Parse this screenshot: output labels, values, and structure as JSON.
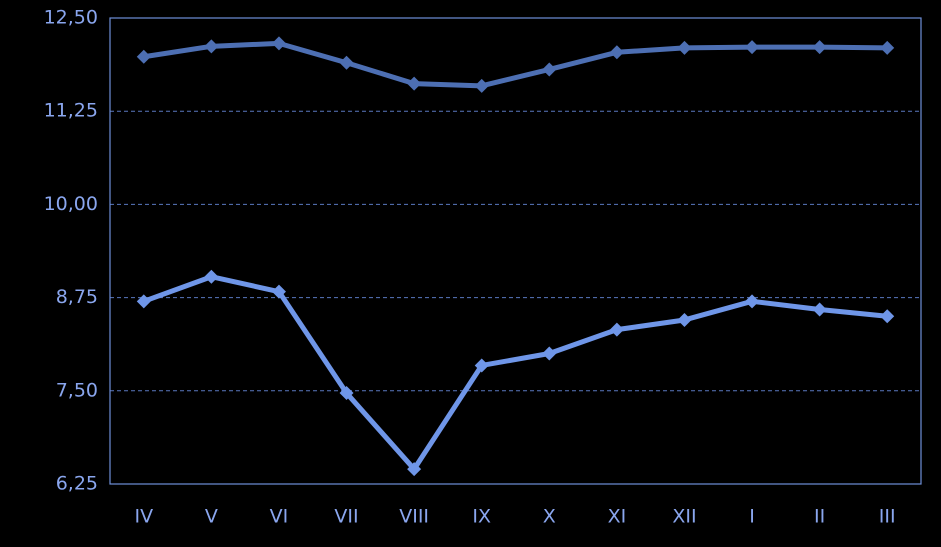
{
  "chart_data": {
    "type": "line",
    "title": "",
    "xlabel": "",
    "ylabel": "",
    "categories": [
      "IV",
      "V",
      "VI",
      "VII",
      "VIII",
      "IX",
      "X",
      "XI",
      "XII",
      "I",
      "II",
      "III"
    ],
    "y_ticks": [
      "12,50",
      "11,25",
      "10,00",
      "8,75",
      "7,50",
      "6,25"
    ],
    "y_tick_values": [
      12.5,
      11.25,
      10.0,
      8.75,
      7.5,
      6.25
    ],
    "ylim": [
      6.25,
      12.5
    ],
    "grid": true,
    "legend": "none",
    "series": [
      {
        "values": [
          11.98,
          12.12,
          12.16,
          11.9,
          11.62,
          11.59,
          11.81,
          12.04,
          12.1,
          12.11,
          12.11,
          12.1
        ]
      },
      {
        "values": [
          8.7,
          9.03,
          8.83,
          7.47,
          6.45,
          7.84,
          8.0,
          8.32,
          8.45,
          8.7,
          8.59,
          8.5
        ]
      }
    ]
  },
  "colors": {
    "background": "#000000",
    "axis": "#6f8fd8",
    "grid": "#5a78c0",
    "tick_text": "#8aa6ee",
    "series": [
      "#4d6fb3",
      "#6f96e8"
    ]
  }
}
